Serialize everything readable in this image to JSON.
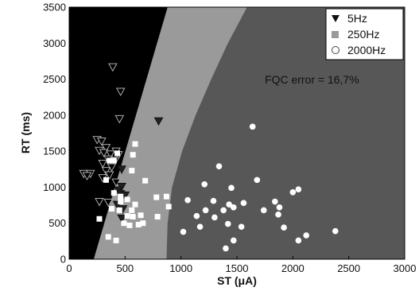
{
  "chart_data": {
    "type": "scatter",
    "xlabel": "ST (μA)",
    "ylabel": "RT (ms)",
    "xlim": [
      0,
      3000
    ],
    "ylim": [
      0,
      3500
    ],
    "xticks": [
      "0",
      "500",
      "1000",
      "1500",
      "2000",
      "2500",
      "3000"
    ],
    "yticks": [
      "0",
      "500",
      "1000",
      "1500",
      "2000",
      "2500",
      "3000",
      "3500"
    ],
    "annotation": "FQC error = 16,7%",
    "legend_position": "top-right",
    "regions": [
      {
        "label": "5Hz",
        "color": "#000000"
      },
      {
        "label": "250Hz",
        "color": "#9a9a9a"
      },
      {
        "label": "2000Hz",
        "color": "#575757"
      }
    ],
    "boundaries": {
      "black_to_light": [
        [
          0,
          220
        ],
        [
          3500,
          880
        ]
      ],
      "light_to_dark": [
        [
          0,
          870
        ],
        [
          500,
          880
        ],
        [
          1000,
          920
        ],
        [
          1500,
          1010
        ],
        [
          2000,
          1130
        ],
        [
          2500,
          1270
        ],
        [
          3000,
          1420
        ],
        [
          3500,
          1590
        ]
      ]
    },
    "series": [
      {
        "name": "5Hz",
        "marker": "triangle-down",
        "points": [
          [
            390,
            2670
          ],
          [
            460,
            2330
          ],
          [
            450,
            1950
          ],
          [
            250,
            1660
          ],
          [
            290,
            1640
          ],
          [
            330,
            1550
          ],
          [
            270,
            1510
          ],
          [
            310,
            1480
          ],
          [
            370,
            1460
          ],
          [
            420,
            1500
          ],
          [
            440,
            1450
          ],
          [
            350,
            1390
          ],
          [
            410,
            1370
          ],
          [
            300,
            1330
          ],
          [
            380,
            1280
          ],
          [
            470,
            1250
          ],
          [
            330,
            1230
          ],
          [
            130,
            1190
          ],
          [
            190,
            1190
          ],
          [
            360,
            1170
          ],
          [
            160,
            1160
          ],
          [
            300,
            1130
          ],
          [
            420,
            1070
          ],
          [
            470,
            1010
          ],
          [
            440,
            960
          ],
          [
            460,
            910
          ],
          [
            500,
            890
          ],
          [
            270,
            800
          ],
          [
            350,
            790
          ],
          [
            430,
            760
          ],
          [
            480,
            700
          ],
          [
            470,
            570
          ],
          [
            800,
            1920
          ]
        ]
      },
      {
        "name": "250Hz",
        "marker": "square",
        "points": [
          [
            590,
            1600
          ],
          [
            430,
            1470
          ],
          [
            570,
            1450
          ],
          [
            360,
            1370
          ],
          [
            400,
            1370
          ],
          [
            560,
            1230
          ],
          [
            330,
            1100
          ],
          [
            680,
            1090
          ],
          [
            400,
            920
          ],
          [
            460,
            870
          ],
          [
            520,
            830
          ],
          [
            780,
            860
          ],
          [
            870,
            870
          ],
          [
            590,
            760
          ],
          [
            380,
            700
          ],
          [
            450,
            680
          ],
          [
            560,
            680
          ],
          [
            890,
            730
          ],
          [
            270,
            560
          ],
          [
            640,
            610
          ],
          [
            490,
            500
          ],
          [
            540,
            470
          ],
          [
            620,
            480
          ],
          [
            660,
            500
          ],
          [
            350,
            310
          ],
          [
            420,
            260
          ],
          [
            570,
            590
          ],
          [
            790,
            590
          ],
          [
            520,
            600
          ],
          [
            460,
            800
          ]
        ]
      },
      {
        "name": "2000Hz",
        "marker": "circle",
        "points": [
          [
            1640,
            1840
          ],
          [
            1340,
            1290
          ],
          [
            1210,
            1040
          ],
          [
            1450,
            990
          ],
          [
            1680,
            1100
          ],
          [
            2000,
            930
          ],
          [
            2050,
            970
          ],
          [
            1060,
            820
          ],
          [
            1290,
            810
          ],
          [
            1430,
            760
          ],
          [
            1560,
            780
          ],
          [
            1840,
            800
          ],
          [
            1220,
            680
          ],
          [
            1380,
            680
          ],
          [
            1470,
            720
          ],
          [
            1740,
            680
          ],
          [
            1880,
            720
          ],
          [
            1140,
            600
          ],
          [
            1300,
            580
          ],
          [
            1870,
            620
          ],
          [
            1420,
            490
          ],
          [
            1540,
            450
          ],
          [
            1170,
            450
          ],
          [
            1920,
            440
          ],
          [
            1020,
            380
          ],
          [
            1470,
            260
          ],
          [
            1400,
            150
          ],
          [
            2050,
            260
          ],
          [
            2120,
            330
          ],
          [
            2380,
            390
          ]
        ]
      }
    ]
  }
}
